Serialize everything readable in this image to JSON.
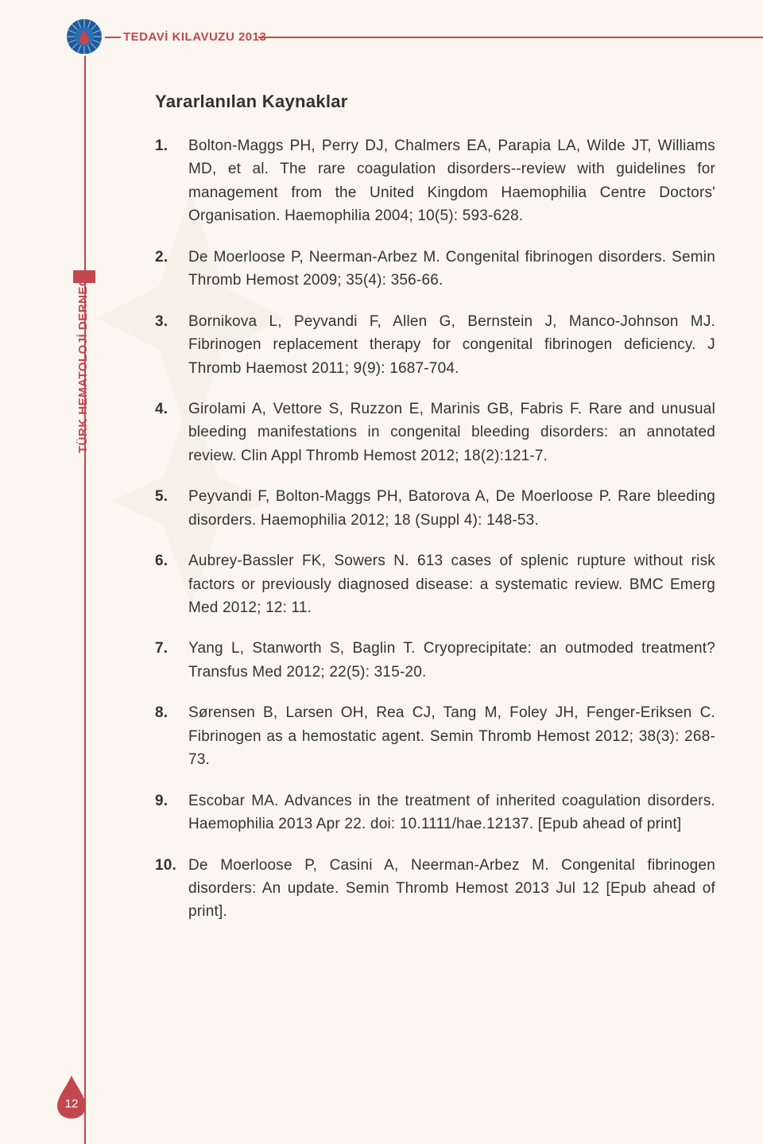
{
  "header": {
    "title": "TEDAVİ KILAVUZU 2013",
    "title_color": "#c2474e",
    "line_color": "#c2474e"
  },
  "sidebar": {
    "label": "TÜRK HEMATOLOJİ DERNEĞİ",
    "label_color": "#c2474e"
  },
  "page": {
    "heading": "Yararlanılan Kaynaklar",
    "number": "12",
    "background_color": "#fbf7f0",
    "text_color": "#333333"
  },
  "references": [
    "Bolton-Maggs PH, Perry DJ, Chalmers EA, Parapia LA, Wilde JT, Williams MD, et al. The rare coagulation disorders--review with guidelines for management from the United Kingdom Haemophilia Centre Doctors' Organisation. Haemophilia 2004; 10(5): 593-628.",
    "De Moerloose P, Neerman-Arbez M. Congenital fibrinogen disorders. Semin Thromb Hemost 2009; 35(4): 356-66.",
    "Bornikova L, Peyvandi F, Allen G, Bernstein J, Manco-Johnson MJ. Fibrinogen replacement therapy for congenital fibrinogen deficiency. J Thromb Haemost 2011; 9(9): 1687-704.",
    "Girolami A, Vettore S, Ruzzon E, Marinis GB, Fabris F. Rare and unusual bleeding manifestations in congenital bleeding disorders: an annotated review. Clin Appl Thromb Hemost 2012; 18(2):121-7.",
    "Peyvandi F, Bolton-Maggs PH, Batorova A, De Moerloose P. Rare bleeding disorders. Haemophilia 2012; 18 (Suppl 4): 148-53.",
    "Aubrey-Bassler FK, Sowers N. 613 cases of splenic rupture without risk factors or previously diagnosed disease: a systematic review. BMC Emerg Med 2012; 12: 11.",
    "Yang L, Stanworth S, Baglin T. Cryoprecipitate: an outmoded treatment? Transfus Med 2012; 22(5): 315-20.",
    "Sørensen B, Larsen OH, Rea CJ, Tang M, Foley JH, Fenger-Eriksen C. Fibrinogen as a hemostatic agent. Semin Thromb Hemost 2012; 38(3): 268-73.",
    "Escobar MA. Advances in the treatment of inherited coagulation disorders. Haemophilia 2013 Apr 22. doi: 10.1111/hae.12137. [Epub ahead of print]",
    "De Moerloose P, Casini A, Neerman-Arbez M. Congenital fibrinogen disorders: An update. Semin Thromb Hemost 2013 Jul 12 [Epub ahead of print]."
  ]
}
